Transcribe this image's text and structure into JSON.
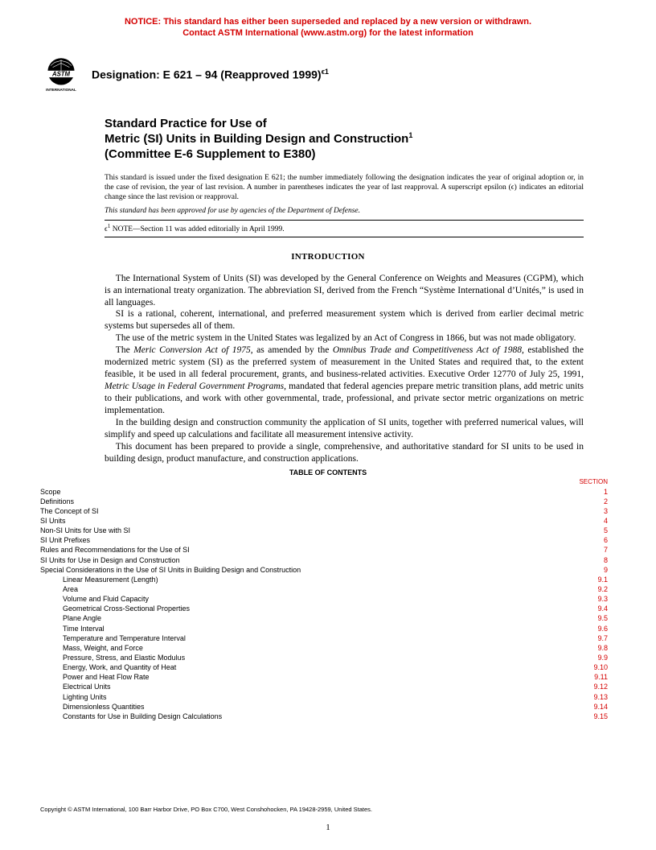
{
  "notice": {
    "line1": "NOTICE: This standard has either been superseded and replaced by a new version or withdrawn.",
    "line2": "Contact ASTM International (www.astm.org) for the latest information"
  },
  "designation": {
    "prefix": "Designation: ",
    "code": "E 621 – 94 (Reapproved 1999)",
    "epsilon": "ϵ1"
  },
  "title": {
    "line1": "Standard Practice for Use of",
    "line2_a": "Metric (SI) Units in Building Design and Construction",
    "line2_sup": "1",
    "line3": "(Committee E-6 Supplement to E380)"
  },
  "issuance": "This standard is issued under the fixed designation E 621; the number immediately following the designation indicates the year of original adoption or, in the case of revision, the year of last revision. A number in parentheses indicates the year of last reapproval. A superscript epsilon (ϵ) indicates an editorial change since the last revision or reapproval.",
  "approved": "This standard has been approved for use by agencies of the Department of Defense.",
  "editorial_note": {
    "prefix": "ϵ",
    "sup": "1",
    "label": " NOTE",
    "text": "—Section 11 was added editorially in April 1999."
  },
  "intro_heading": "INTRODUCTION",
  "intro_paragraphs": {
    "p1": "The International System of Units (SI) was developed by the General Conference on Weights and Measures (CGPM), which is an international treaty organization. The abbreviation SI, derived from the French “Système International d’Unités,” is used in all languages.",
    "p2": "SI is a rational, coherent, international, and preferred measurement system which is derived from earlier decimal metric systems but supersedes all of them.",
    "p3": "The use of the metric system in the United States was legalized by an Act of Congress in 1866, but was not made obligatory.",
    "p4_a": "The ",
    "p4_i1": "Meric Conversion Act of 1975",
    "p4_b": ", as amended by the ",
    "p4_i2": "Omnibus Trade and Competitiveness Act of 1988",
    "p4_c": ", established the modernized metric system (SI) as the preferred system of measurement in the United States and required that, to the extent feasible, it be used in all federal procurement, grants, and business-related activities. Executive Order 12770 of July 25, 1991, ",
    "p4_i3": "Metric Usage in Federal Government Programs",
    "p4_d": ", mandated that federal agencies prepare metric transition plans, add metric units to their publications, and work with other governmental, trade, professional, and private sector metric organizations on metric implementation.",
    "p5": "In the building design and construction community the application of SI units, together with preferred numerical values, will simplify and speed up calculations and facilitate all measurement intensive activity.",
    "p6": "This document has been prepared to provide a single, comprehensive, and authoritative standard for SI units to be used in building design, product manufacture, and construction applications."
  },
  "toc_heading": "TABLE OF CONTENTS",
  "toc_section_label": "SECTION",
  "toc": [
    {
      "label": "Scope",
      "num": "1",
      "indent": false
    },
    {
      "label": "Definitions",
      "num": "2",
      "indent": false
    },
    {
      "label": "The Concept of SI",
      "num": "3",
      "indent": false
    },
    {
      "label": "SI Units",
      "num": "4",
      "indent": false
    },
    {
      "label": "Non-SI Units for Use with SI",
      "num": "5",
      "indent": false
    },
    {
      "label": "SI Unit Prefixes",
      "num": "6",
      "indent": false
    },
    {
      "label": "Rules and Recommendations for the Use of SI",
      "num": "7",
      "indent": false
    },
    {
      "label": "SI Units for Use in Design and Construction",
      "num": "8",
      "indent": false
    },
    {
      "label": "Special Considerations in the Use of SI Units in Building Design and Construction",
      "num": "9",
      "indent": false
    },
    {
      "label": "Linear Measurement (Length)",
      "num": "9.1",
      "indent": true
    },
    {
      "label": "Area",
      "num": "9.2",
      "indent": true
    },
    {
      "label": "Volume and Fluid Capacity",
      "num": "9.3",
      "indent": true
    },
    {
      "label": "Geometrical Cross-Sectional Properties",
      "num": "9.4",
      "indent": true
    },
    {
      "label": "Plane Angle",
      "num": "9.5",
      "indent": true
    },
    {
      "label": "Time Interval",
      "num": "9.6",
      "indent": true
    },
    {
      "label": "Temperature and Temperature Interval",
      "num": "9.7",
      "indent": true
    },
    {
      "label": "Mass, Weight, and Force",
      "num": "9.8",
      "indent": true
    },
    {
      "label": "Pressure, Stress, and Elastic Modulus",
      "num": "9.9",
      "indent": true
    },
    {
      "label": "Energy, Work, and Quantity of Heat",
      "num": "9.10",
      "indent": true
    },
    {
      "label": "Power and Heat Flow Rate",
      "num": "9.11",
      "indent": true
    },
    {
      "label": "Electrical Units",
      "num": "9.12",
      "indent": true
    },
    {
      "label": "Lighting Units",
      "num": "9.13",
      "indent": true
    },
    {
      "label": "Dimensionless Quantities",
      "num": "9.14",
      "indent": true
    },
    {
      "label": "Constants for Use in Building Design Calculations",
      "num": "9.15",
      "indent": true
    }
  ],
  "copyright": "Copyright © ASTM International, 100 Barr Harbor Drive, PO Box C700, West Conshohocken, PA 19428-2959, United States.",
  "page_number": "1",
  "colors": {
    "red": "#d40000",
    "black": "#000000",
    "background": "#ffffff"
  }
}
